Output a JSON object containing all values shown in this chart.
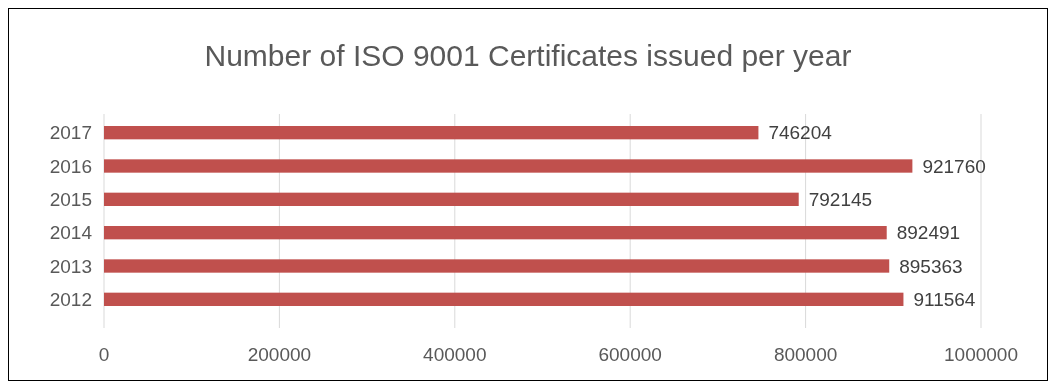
{
  "chart_data": {
    "type": "bar",
    "title": "Number of ISO 9001 Certificates issued per year",
    "orientation": "horizontal",
    "categories": [
      "2017",
      "2016",
      "2015",
      "2014",
      "2013",
      "2012"
    ],
    "values": [
      746204,
      921760,
      792145,
      892491,
      895363,
      911564
    ],
    "color": "#c0504d",
    "data_labels": true,
    "xlim": [
      0,
      1000000
    ],
    "xticks": [
      0,
      200000,
      400000,
      600000,
      800000,
      1000000
    ],
    "grid": "x"
  }
}
